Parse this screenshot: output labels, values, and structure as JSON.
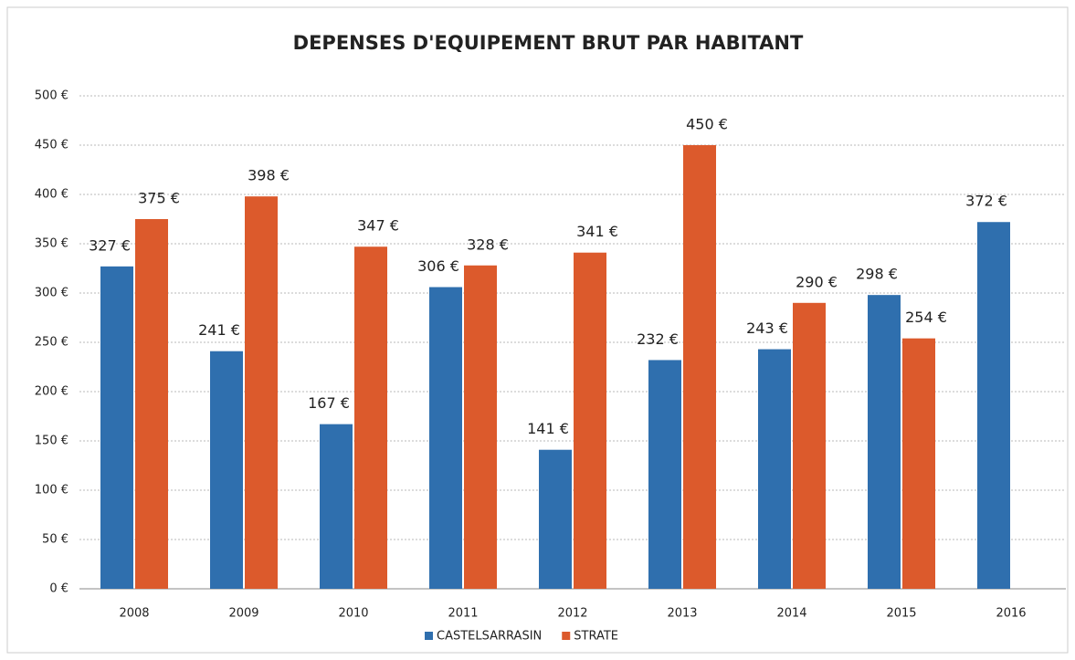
{
  "chart_data": {
    "type": "bar",
    "title": "DEPENSES D'EQUIPEMENT BRUT PAR HABITANT",
    "categories": [
      "2008",
      "2009",
      "2010",
      "2011",
      "2012",
      "2013",
      "2014",
      "2015",
      "2016"
    ],
    "series": [
      {
        "name": "CASTELSARRASIN",
        "color": "#2f6fae",
        "values": [
          327,
          241,
          167,
          306,
          141,
          232,
          243,
          298,
          372
        ],
        "value_labels": [
          "327 €",
          "241 €",
          "167 €",
          "306 €",
          "141 €",
          "232 €",
          "243 €",
          "298 €",
          "372 €"
        ]
      },
      {
        "name": "STRATE",
        "color": "#dc5a2c",
        "values": [
          375,
          398,
          347,
          328,
          341,
          450,
          290,
          254,
          null
        ],
        "value_labels": [
          "375 €",
          "398 €",
          "347 €",
          "328 €",
          "341 €",
          "450 €",
          "290 €",
          "254 €",
          null
        ]
      }
    ],
    "ylim": [
      0,
      500
    ],
    "yticks": [
      {
        "value": 0,
        "label": "0 €"
      },
      {
        "value": 50,
        "label": "50 €"
      },
      {
        "value": 100,
        "label": "100 €"
      },
      {
        "value": 150,
        "label": "150 €"
      },
      {
        "value": 200,
        "label": "200 €"
      },
      {
        "value": 250,
        "label": "250 €"
      },
      {
        "value": 300,
        "label": "300 €"
      },
      {
        "value": 350,
        "label": "350 €"
      },
      {
        "value": 400,
        "label": "400 €"
      },
      {
        "value": 450,
        "label": "450 €"
      },
      {
        "value": 500,
        "label": "500 €"
      }
    ],
    "grid": true,
    "legend": "bottom"
  }
}
